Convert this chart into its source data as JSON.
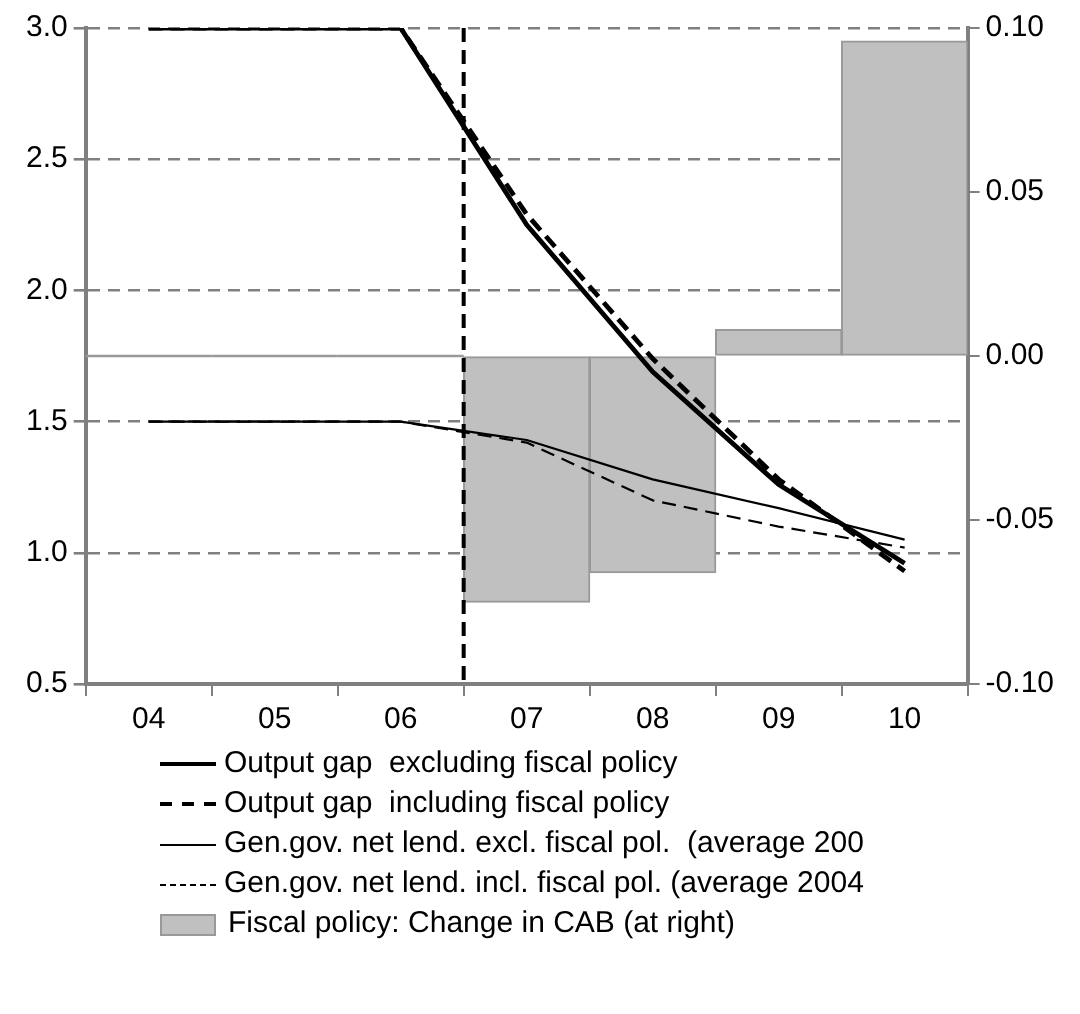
{
  "chart_data": {
    "type": "line",
    "categories": [
      "04",
      "05",
      "06",
      "07",
      "08",
      "09",
      "10"
    ],
    "series": [
      {
        "name": "Output gap  excluding fiscal policy",
        "color": "#000000",
        "line_style": "solid",
        "values": [
          3.0,
          3.0,
          3.0,
          2.25,
          1.69,
          1.26,
          0.96
        ]
      },
      {
        "name": "Output gap  including fiscal policy",
        "color": "#000000",
        "line_style": "dashed",
        "values": [
          3.0,
          3.0,
          3.0,
          2.29,
          1.74,
          1.28,
          0.93
        ]
      },
      {
        "name": "Gen.gov. net lend. excl. fiscal pol.  (average 200",
        "color": "#000000",
        "line_style": "solid",
        "values": [
          1.5,
          1.5,
          1.5,
          1.43,
          1.28,
          1.17,
          1.05
        ]
      },
      {
        "name": "Gen.gov. net lend. incl. fiscal pol. (average 2004",
        "color": "#000000",
        "line_style": "dashed",
        "values": [
          1.5,
          1.5,
          1.5,
          1.42,
          1.2,
          1.1,
          1.02
        ]
      },
      {
        "name": "Fiscal policy: Change in CAB (at right)",
        "type": "bar",
        "axis": "y2",
        "color": "#c0c0c0",
        "values": [
          0,
          0,
          0,
          -0.075,
          -0.066,
          0.008,
          0.096
        ]
      }
    ],
    "ylim": [
      0.5,
      3.0
    ],
    "yticks": [
      0.5,
      {
        "value": 1,
        "label": "1.0"
      },
      1.5,
      {
        "value": 2,
        "label": "2.0"
      },
      2.5,
      {
        "value": 3,
        "label": "3.0"
      }
    ],
    "y2lim": [
      -0.1,
      0.1
    ],
    "y2ticks": [
      {
        "value": -0.1,
        "label": "-0.10"
      },
      {
        "value": -0.05,
        "label": "-0.05"
      },
      {
        "value": 0,
        "label": "0.00"
      },
      {
        "value": 0.05,
        "label": "0.05"
      },
      {
        "value": 0.1,
        "label": "0.10"
      }
    ],
    "ref_lines": [
      {
        "axis": "x",
        "value": "07",
        "color": "#000000",
        "line_style": "dashed"
      }
    ],
    "grid": "y",
    "legend": "bottom",
    "marker": "none"
  }
}
